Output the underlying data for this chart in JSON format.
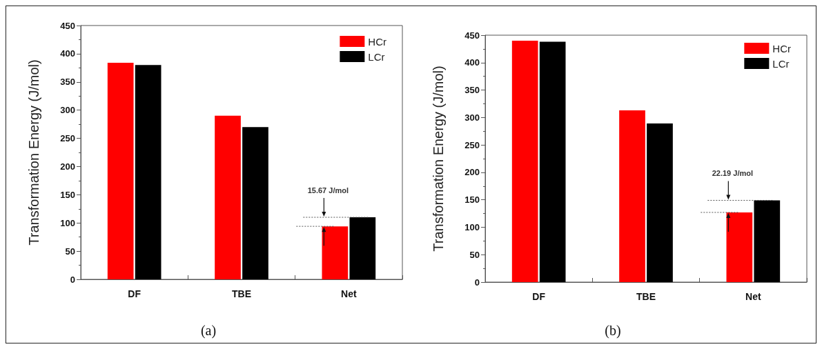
{
  "chart_data": [
    {
      "type": "bar",
      "ylabel": "Transformation Energy (J/mol)",
      "categories": [
        "DF",
        "TBE",
        "Net"
      ],
      "series": [
        {
          "name": "HCr",
          "color": "#ff0000",
          "values": [
            384,
            290,
            94
          ]
        },
        {
          "name": "LCr",
          "color": "#000000",
          "values": [
            380,
            270,
            110
          ]
        }
      ],
      "ylim": [
        0,
        450
      ],
      "yticks": [
        0,
        50,
        100,
        150,
        200,
        250,
        300,
        350,
        400,
        450
      ],
      "grid": false,
      "legend": "top right",
      "annotations": [
        "15.67 J/mol",
        "(a)"
      ]
    },
    {
      "type": "bar",
      "ylabel": "Transformation Energy (J/mol)",
      "categories": [
        "DF",
        "TBE",
        "Net"
      ],
      "series": [
        {
          "name": "HCr",
          "color": "#ff0000",
          "values": [
            440,
            313,
            127
          ]
        },
        {
          "name": "LCr",
          "color": "#000000",
          "values": [
            438,
            289,
            149
          ]
        }
      ],
      "ylim": [
        0,
        450
      ],
      "yticks": [
        0,
        50,
        100,
        150,
        200,
        250,
        300,
        350,
        400,
        450
      ],
      "grid": false,
      "legend": "top right",
      "annotations": [
        "22.19 J/mol",
        "(b)"
      ]
    }
  ]
}
